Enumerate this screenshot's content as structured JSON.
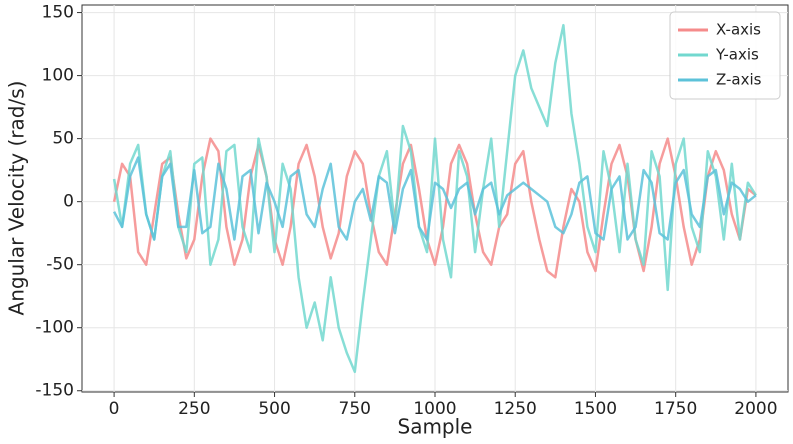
{
  "chart_data": {
    "type": "line",
    "x_label": "Sample",
    "y_label": "Angular Velocity (rad/s)",
    "x": [
      0,
      25,
      50,
      75,
      100,
      125,
      150,
      175,
      200,
      225,
      250,
      275,
      300,
      325,
      350,
      375,
      400,
      425,
      450,
      475,
      500,
      525,
      550,
      575,
      600,
      625,
      650,
      675,
      700,
      725,
      750,
      775,
      800,
      825,
      850,
      875,
      900,
      925,
      950,
      975,
      1000,
      1025,
      1050,
      1075,
      1100,
      1125,
      1150,
      1175,
      1200,
      1225,
      1250,
      1275,
      1300,
      1325,
      1350,
      1375,
      1400,
      1425,
      1450,
      1475,
      1500,
      1525,
      1550,
      1575,
      1600,
      1625,
      1650,
      1675,
      1700,
      1725,
      1750,
      1775,
      1800,
      1825,
      1850,
      1875,
      1900,
      1925,
      1950,
      1975,
      2000
    ],
    "series": [
      {
        "name": "X-axis",
        "color": "#f58b8b",
        "values": [
          0,
          30,
          20,
          -40,
          -50,
          -10,
          30,
          35,
          -10,
          -45,
          -30,
          20,
          50,
          40,
          -20,
          -50,
          -30,
          20,
          45,
          20,
          -30,
          -50,
          -20,
          30,
          45,
          20,
          -20,
          -45,
          -25,
          20,
          40,
          30,
          -10,
          -40,
          -50,
          -10,
          30,
          45,
          10,
          -30,
          -50,
          -20,
          30,
          45,
          30,
          -10,
          -40,
          -50,
          -20,
          -10,
          30,
          40,
          0,
          -30,
          -55,
          -60,
          -20,
          10,
          0,
          -40,
          -55,
          -10,
          30,
          45,
          20,
          -30,
          -55,
          -20,
          30,
          50,
          20,
          -20,
          -50,
          -30,
          20,
          40,
          25,
          -10,
          -30,
          10,
          5
        ]
      },
      {
        "name": "Y-axis",
        "color": "#72d8cf",
        "values": [
          18,
          -20,
          30,
          45,
          -10,
          -30,
          20,
          40,
          -20,
          -40,
          30,
          35,
          -50,
          -30,
          40,
          45,
          -20,
          -40,
          50,
          20,
          -40,
          30,
          10,
          -60,
          -100,
          -80,
          -110,
          -60,
          -100,
          -120,
          -135,
          -80,
          -30,
          20,
          40,
          -20,
          60,
          40,
          -20,
          -40,
          50,
          -30,
          -60,
          40,
          20,
          -40,
          10,
          50,
          -20,
          40,
          100,
          120,
          90,
          75,
          60,
          110,
          140,
          70,
          30,
          -20,
          -40,
          40,
          10,
          -40,
          30,
          -30,
          -50,
          40,
          20,
          -70,
          30,
          50,
          -20,
          -40,
          40,
          20,
          -30,
          30,
          -30,
          15,
          5
        ]
      },
      {
        "name": "Z-axis",
        "color": "#5cc2d9",
        "values": [
          -8,
          -20,
          20,
          35,
          -10,
          -30,
          20,
          30,
          -20,
          -20,
          25,
          -25,
          -20,
          30,
          10,
          -30,
          20,
          25,
          -25,
          15,
          0,
          -20,
          20,
          25,
          -10,
          -20,
          10,
          30,
          -20,
          -30,
          0,
          10,
          -15,
          20,
          15,
          -25,
          10,
          25,
          -20,
          -30,
          15,
          10,
          -5,
          10,
          15,
          -10,
          10,
          15,
          -10,
          5,
          10,
          15,
          10,
          5,
          0,
          -20,
          -25,
          -10,
          15,
          20,
          -25,
          -30,
          10,
          20,
          -30,
          -20,
          25,
          15,
          -25,
          -30,
          15,
          25,
          -10,
          -20,
          20,
          25,
          -10,
          15,
          10,
          0,
          5
        ]
      }
    ],
    "xlim": [
      -100,
      2100
    ],
    "ylim": [
      -151,
      156
    ],
    "xticks": [
      0,
      250,
      500,
      750,
      1000,
      1250,
      1500,
      1750,
      2000
    ],
    "yticks": [
      -150,
      -100,
      -50,
      0,
      50,
      100,
      150
    ],
    "grid": true,
    "legend": "upper-right"
  }
}
